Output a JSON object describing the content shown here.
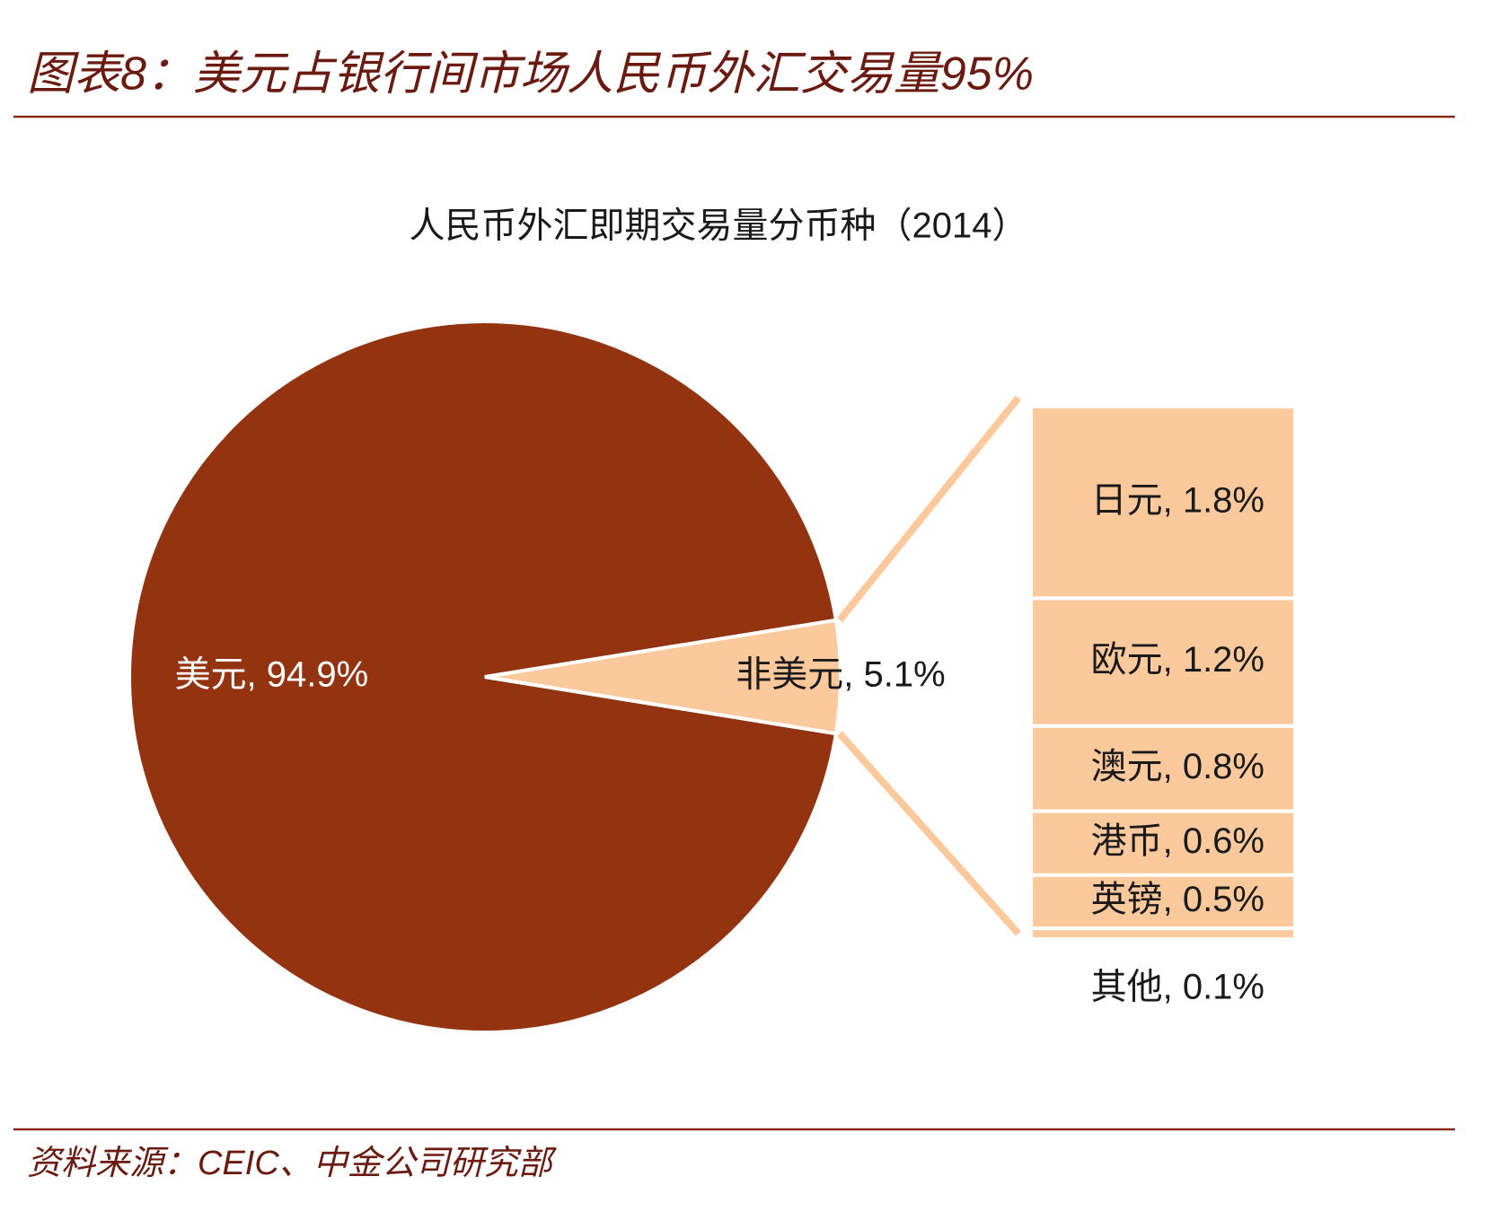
{
  "header": {
    "title": "图表8：美元占银行间市场人民币外汇交易量95%"
  },
  "chart_data": {
    "type": "pie",
    "title": "人民币外汇即期交易量分币种（2014）",
    "values": [
      94.9,
      5.1
    ],
    "value_labels": [
      "美元, 94.9%",
      "非美元, 5.1%"
    ],
    "colors": [
      "#93330f",
      "#fcc99c"
    ],
    "label_colors": [
      "#ffffff",
      "#1a1a1a"
    ],
    "breakdown": {
      "type": "bar",
      "values": [
        1.8,
        1.2,
        0.8,
        0.6,
        0.5,
        0.1
      ],
      "value_labels": [
        "日元, 1.8%",
        "欧元, 1.2%",
        "澳元, 0.8%",
        "港币, 0.6%",
        "英镑, 0.5%",
        "其他, 0.1%"
      ],
      "color": "#fcc99c"
    }
  },
  "source": "资料来源：CEIC、中金公司研究部"
}
